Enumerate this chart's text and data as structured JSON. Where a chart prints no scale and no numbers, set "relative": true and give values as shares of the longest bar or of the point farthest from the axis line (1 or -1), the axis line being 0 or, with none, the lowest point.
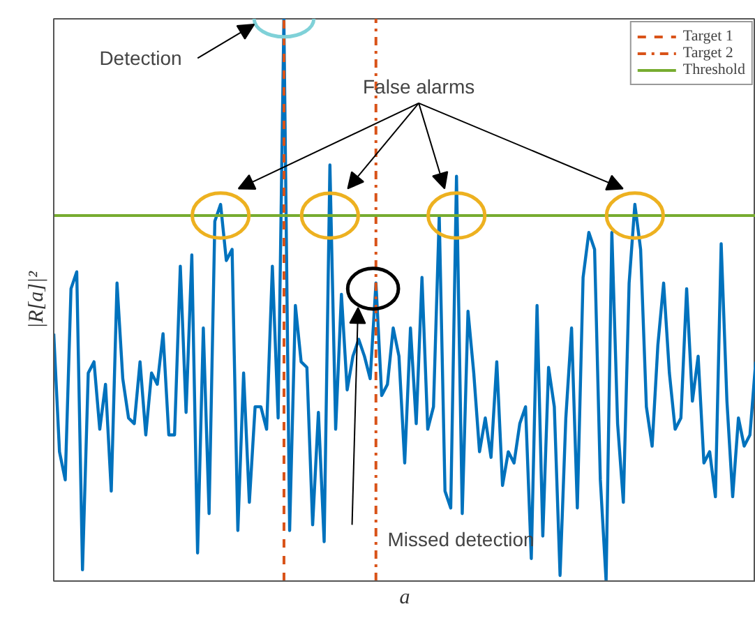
{
  "chart_data": {
    "type": "line",
    "relative": true,
    "xlabel": "a",
    "ylabel": "|R[a]|²",
    "categories": [
      null,
      null,
      null,
      null,
      null,
      null,
      null,
      null,
      null,
      null,
      null,
      null,
      null,
      null,
      null,
      null,
      null,
      null,
      null,
      null,
      null,
      null,
      null,
      null,
      null,
      null,
      null,
      null,
      null,
      null,
      null,
      null,
      null,
      null,
      null,
      null,
      null,
      null,
      null,
      null,
      null,
      null,
      null,
      null,
      null,
      null,
      null,
      null,
      null,
      null,
      null,
      null,
      null,
      null,
      null,
      null,
      null,
      null,
      null,
      null,
      null,
      null,
      null,
      null,
      null,
      null,
      null,
      null,
      null,
      null,
      null,
      null,
      null,
      null,
      null,
      null,
      null,
      null,
      null,
      null,
      null,
      null,
      null,
      null,
      null,
      null,
      null,
      null,
      null,
      null,
      null,
      null,
      null,
      null,
      null,
      null,
      null,
      null,
      null,
      null,
      null,
      null,
      null,
      null,
      null,
      null,
      null,
      null,
      null,
      null,
      null,
      null,
      null,
      null,
      null,
      null,
      null,
      null,
      null,
      null,
      null,
      null,
      null
    ],
    "series": [
      {
        "color": "#0072bd",
        "values": [
          0.44,
          0.23,
          0.18,
          0.52,
          0.55,
          0.02,
          0.37,
          0.39,
          0.27,
          0.35,
          0.16,
          0.53,
          0.36,
          0.29,
          0.28,
          0.39,
          0.26,
          0.37,
          0.35,
          0.44,
          0.26,
          0.26,
          0.56,
          0.3,
          0.58,
          0.05,
          0.45,
          0.12,
          0.64,
          0.67,
          0.57,
          0.59,
          0.09,
          0.37,
          0.14,
          0.31,
          0.31,
          0.27,
          0.56,
          0.29,
          1.0,
          0.09,
          0.49,
          0.39,
          0.38,
          0.1,
          0.3,
          0.07,
          0.74,
          0.27,
          0.51,
          0.34,
          0.4,
          0.43,
          0.4,
          0.36,
          0.53,
          0.33,
          0.35,
          0.45,
          0.4,
          0.21,
          0.45,
          0.28,
          0.54,
          0.27,
          0.31,
          0.65,
          0.16,
          0.13,
          0.72,
          0.12,
          0.48,
          0.37,
          0.23,
          0.29,
          0.22,
          0.39,
          0.17,
          0.23,
          0.21,
          0.28,
          0.31,
          0.04,
          0.49,
          0.08,
          0.38,
          0.31,
          0.01,
          0.29,
          0.45,
          0.13,
          0.54,
          0.62,
          0.59,
          0.18,
          0.0,
          0.62,
          0.28,
          0.14,
          0.53,
          0.67,
          0.59,
          0.31,
          0.24,
          0.42,
          0.53,
          0.37,
          0.27,
          0.29,
          0.52,
          0.32,
          0.4,
          0.21,
          0.23,
          0.15,
          0.6,
          0.32,
          0.15,
          0.29,
          0.24,
          0.26,
          0.39
        ]
      }
    ],
    "ref_lines": [
      {
        "axis": "x",
        "label": "Target 1",
        "color": "#d95319",
        "line_style": "dashed"
      },
      {
        "axis": "x",
        "label": "Target 2",
        "color": "#d95319",
        "line_style": "dashdot"
      },
      {
        "axis": "y",
        "value": 0.65,
        "label": "Threshold",
        "color": "#77ac30",
        "line_style": "solid"
      }
    ],
    "annotations": [
      "Detection",
      "False alarms",
      "Missed detection"
    ],
    "legend": "top right",
    "marker": "none",
    "line_style": "solid"
  }
}
